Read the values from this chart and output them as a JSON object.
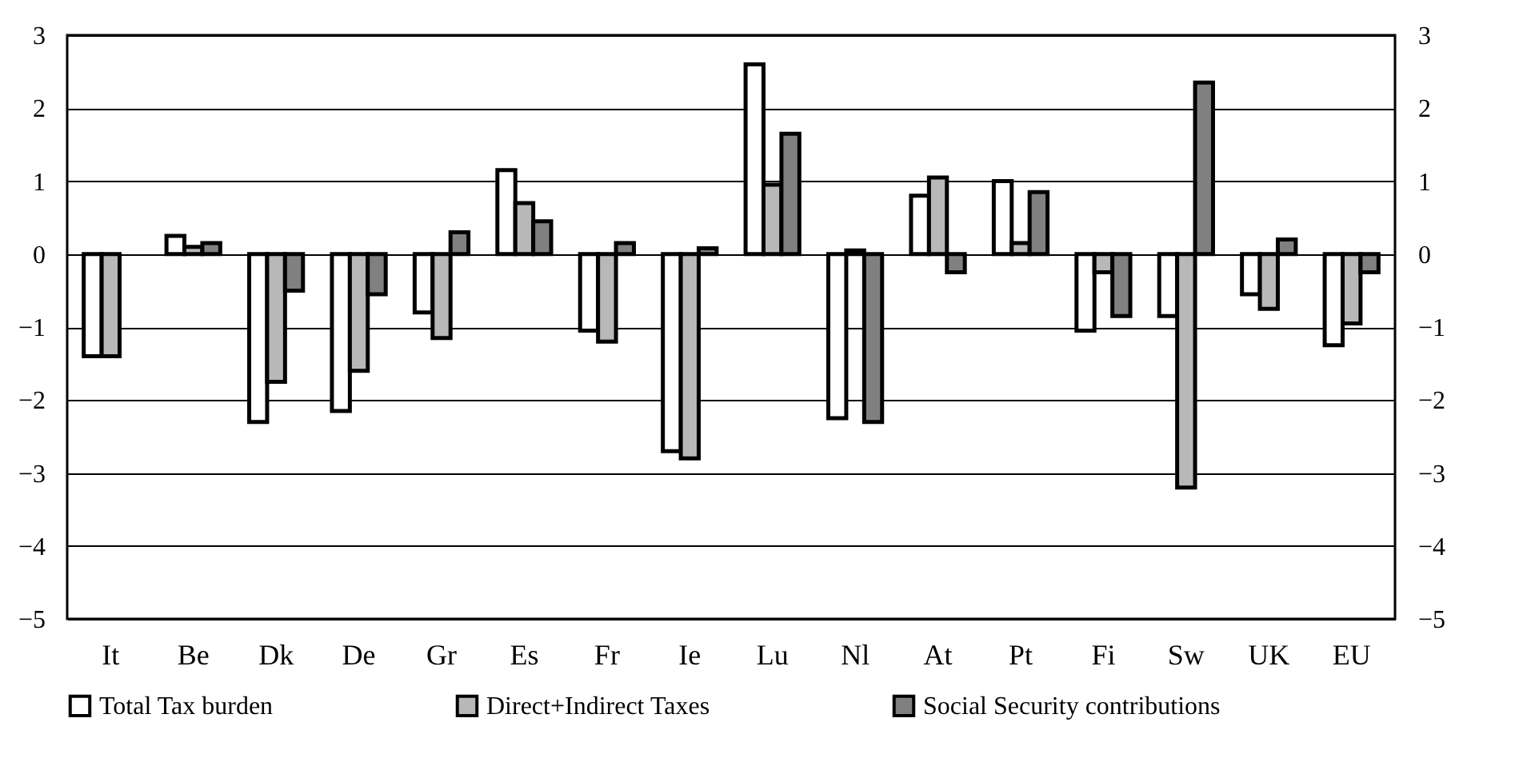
{
  "chart_data": {
    "type": "bar",
    "categories": [
      "It",
      "Be",
      "Dk",
      "De",
      "Gr",
      "Es",
      "Fr",
      "Ie",
      "Lu",
      "Nl",
      "At",
      "Pt",
      "Fi",
      "Sw",
      "UK",
      "EU"
    ],
    "series": [
      {
        "name": "Total Tax burden",
        "color": "#ffffff",
        "values": [
          -1.4,
          0.25,
          -2.3,
          -2.15,
          -0.8,
          1.15,
          -1.05,
          -2.7,
          2.6,
          -2.25,
          0.8,
          1.0,
          -1.05,
          -0.85,
          -0.55,
          -1.25
        ]
      },
      {
        "name": "Direct+Indirect Taxes",
        "color": "#b8b8b8",
        "values": [
          -1.4,
          0.1,
          -1.75,
          -1.6,
          -1.15,
          0.7,
          -1.2,
          -2.8,
          0.95,
          0.05,
          1.05,
          0.15,
          -0.25,
          -3.2,
          -0.75,
          -0.95
        ]
      },
      {
        "name": "Social Security contributions",
        "color": "#808080",
        "values": [
          null,
          0.15,
          -0.5,
          -0.55,
          0.3,
          0.45,
          0.15,
          0.08,
          1.65,
          -2.3,
          -0.25,
          0.85,
          -0.85,
          2.35,
          0.2,
          -0.25
        ]
      }
    ],
    "ylim": [
      -5,
      3
    ],
    "yticks": [
      -5,
      -4,
      -3,
      -2,
      -1,
      0,
      1,
      2,
      3
    ],
    "y2lim": [
      -5,
      3
    ],
    "y2ticks": [
      -5,
      -4,
      -3,
      -2,
      -1,
      0,
      1,
      2,
      3
    ],
    "grid": "y",
    "legend": "bottom"
  }
}
